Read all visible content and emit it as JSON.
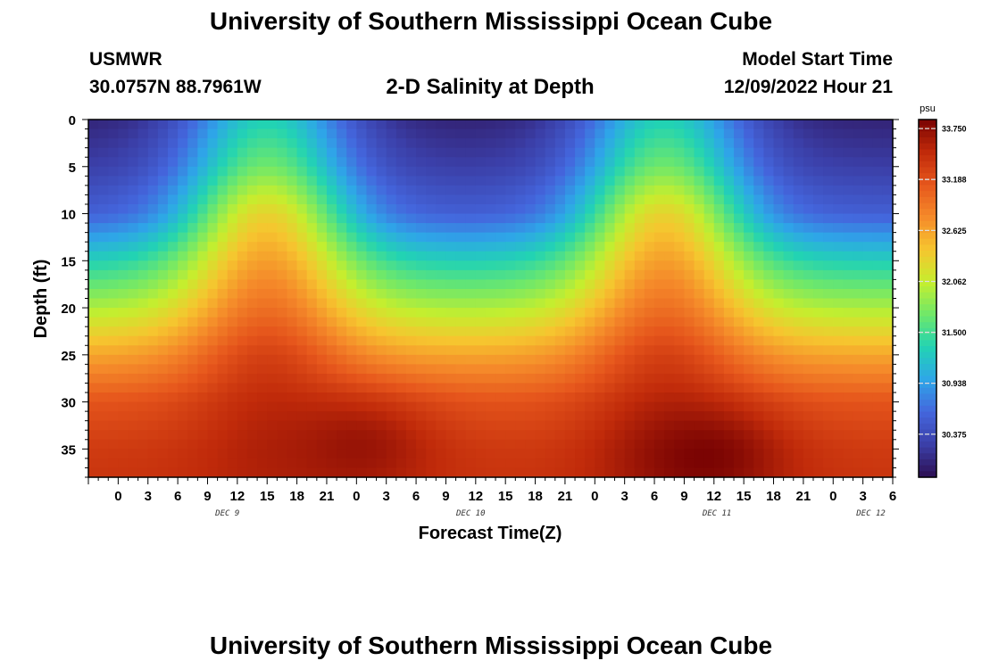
{
  "page": {
    "title": "University of Southern Mississippi Ocean Cube",
    "station": "USMWR",
    "coordinates": "30.0757N  88.7961W",
    "subtitle": "2-D Salinity at Depth",
    "model_start_label": "Model Start Time",
    "model_start_value": "12/09/2022 Hour 21",
    "footer_title": "University of Southern Mississippi Ocean Cube"
  },
  "chart_data": {
    "type": "heatmap",
    "title": "2-D Salinity at Depth",
    "xlabel": "Forecast Time(Z)",
    "ylabel": "Depth (ft)",
    "x_unit": "hours since model start (12/09/2022 Hour 21)",
    "x_range": [
      0,
      81
    ],
    "x_ticks": [
      {
        "h": 3,
        "label": "0"
      },
      {
        "h": 6,
        "label": "3"
      },
      {
        "h": 9,
        "label": "6"
      },
      {
        "h": 12,
        "label": "9"
      },
      {
        "h": 15,
        "label": "12"
      },
      {
        "h": 18,
        "label": "15"
      },
      {
        "h": 21,
        "label": "18"
      },
      {
        "h": 24,
        "label": "21"
      },
      {
        "h": 27,
        "label": "0"
      },
      {
        "h": 30,
        "label": "3"
      },
      {
        "h": 33,
        "label": "6"
      },
      {
        "h": 36,
        "label": "9"
      },
      {
        "h": 39,
        "label": "12"
      },
      {
        "h": 42,
        "label": "15"
      },
      {
        "h": 45,
        "label": "18"
      },
      {
        "h": 48,
        "label": "21"
      },
      {
        "h": 51,
        "label": "0"
      },
      {
        "h": 54,
        "label": "3"
      },
      {
        "h": 57,
        "label": "6"
      },
      {
        "h": 60,
        "label": "9"
      },
      {
        "h": 63,
        "label": "12"
      },
      {
        "h": 66,
        "label": "15"
      },
      {
        "h": 69,
        "label": "18"
      },
      {
        "h": 72,
        "label": "21"
      },
      {
        "h": 75,
        "label": "0"
      },
      {
        "h": 78,
        "label": "3"
      },
      {
        "h": 81,
        "label": "6"
      }
    ],
    "date_labels": [
      {
        "h": 14,
        "label": "DEC 9"
      },
      {
        "h": 38.5,
        "label": "DEC 10"
      },
      {
        "h": 63.3,
        "label": "DEC 11"
      },
      {
        "h": 78.8,
        "label": "DEC 12"
      }
    ],
    "y_range": [
      0,
      38
    ],
    "y_ticks": [
      0,
      5,
      10,
      15,
      20,
      25,
      30,
      35
    ],
    "colorbar": {
      "unit": "psu",
      "range": [
        29.9,
        33.85
      ],
      "ticks": [
        "33.750",
        "33.188",
        "32.625",
        "32.062",
        "31.500",
        "30.938",
        "30.375"
      ],
      "colors": [
        "#2d0f52",
        "#3b3fa8",
        "#4466dd",
        "#2ea6e8",
        "#22d3b3",
        "#6fe86a",
        "#c5ee2e",
        "#f6c52f",
        "#f58a2a",
        "#e6561c",
        "#c02a0a",
        "#7a0403"
      ]
    },
    "profile": {
      "depths_ft": [
        0,
        5,
        10,
        15,
        20,
        25,
        30,
        35,
        38
      ],
      "surface_trough_psu": [
        30.05,
        30.25,
        30.55,
        31.3,
        31.95,
        32.6,
        33.15,
        33.35,
        33.4
      ],
      "surface_peak_psu": [
        31.3,
        31.7,
        32.3,
        32.65,
        32.95,
        33.3,
        33.48,
        33.55,
        33.55
      ],
      "peak_hours": [
        18,
        58
      ],
      "deep_maxima": [
        {
          "hour": 27,
          "depth_ft": 35,
          "psu": 33.7
        },
        {
          "hour": 62,
          "depth_ft": 36,
          "psu": 33.85
        }
      ]
    }
  }
}
